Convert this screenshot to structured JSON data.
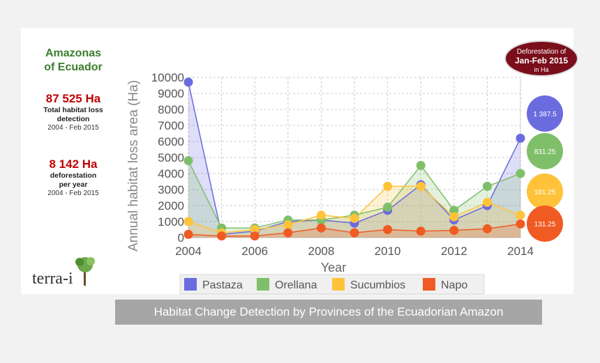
{
  "sidebar": {
    "region_line1": "Amazonas",
    "region_line2": "of Ecuador",
    "total_value": "87 525 Ha",
    "total_label_1": "Total habitat loss",
    "total_label_2": "detection",
    "total_period": "2004 - Feb 2015",
    "annual_value": "8 142 Ha",
    "annual_label_1": "deforestation",
    "annual_label_2": "per year",
    "annual_period": "2004 - Feb 2015"
  },
  "logo": {
    "text": "terra-i",
    "icon": "tree-icon"
  },
  "badge": {
    "line1": "Deforestation of",
    "line2": "Jan-Feb 2015",
    "line3": "in Ha",
    "color": "#7a0e1b"
  },
  "bubbles": [
    {
      "label": "1 387.5",
      "color": "#6b6be0"
    },
    {
      "label": "831.25",
      "color": "#7fbf6a"
    },
    {
      "label": "181.25",
      "color": "#ffc33a"
    },
    {
      "label": "131.25",
      "color": "#f05a23"
    }
  ],
  "caption": "Habitat Change Detection by Provinces of the Ecuadorian Amazon",
  "chart_data": {
    "type": "area",
    "xlabel": "Year",
    "ylabel": "Annual habitat loss area (Ha)",
    "xlim": [
      2004,
      2014
    ],
    "ylim": [
      0,
      10000
    ],
    "yticks": [
      "0",
      "1000",
      "2000",
      "3000",
      "4000",
      "5000",
      "6000",
      "7000",
      "8000",
      "9000",
      "10000"
    ],
    "xticks": [
      "2004",
      "2006",
      "2008",
      "2010",
      "2012",
      "2014"
    ],
    "grid": true,
    "legend_position": "bottom",
    "x": [
      2004,
      2005,
      2006,
      2007,
      2008,
      2009,
      2010,
      2011,
      2012,
      2013,
      2014
    ],
    "series": [
      {
        "name": "Pastaza",
        "color": "#6b6be0",
        "values": [
          9700,
          200,
          400,
          1000,
          1100,
          900,
          1700,
          3300,
          1100,
          2000,
          6200
        ]
      },
      {
        "name": "Orellana",
        "color": "#7fbf6a",
        "values": [
          4800,
          600,
          600,
          1100,
          1100,
          1400,
          1900,
          4500,
          1700,
          3200,
          4000
        ]
      },
      {
        "name": "Sucumbios",
        "color": "#ffc33a",
        "values": [
          1000,
          300,
          500,
          800,
          1400,
          1200,
          3200,
          3200,
          1300,
          2200,
          1400
        ]
      },
      {
        "name": "Napo",
        "color": "#f05a23",
        "values": [
          200,
          100,
          100,
          300,
          600,
          300,
          500,
          400,
          450,
          550,
          850
        ]
      }
    ]
  }
}
